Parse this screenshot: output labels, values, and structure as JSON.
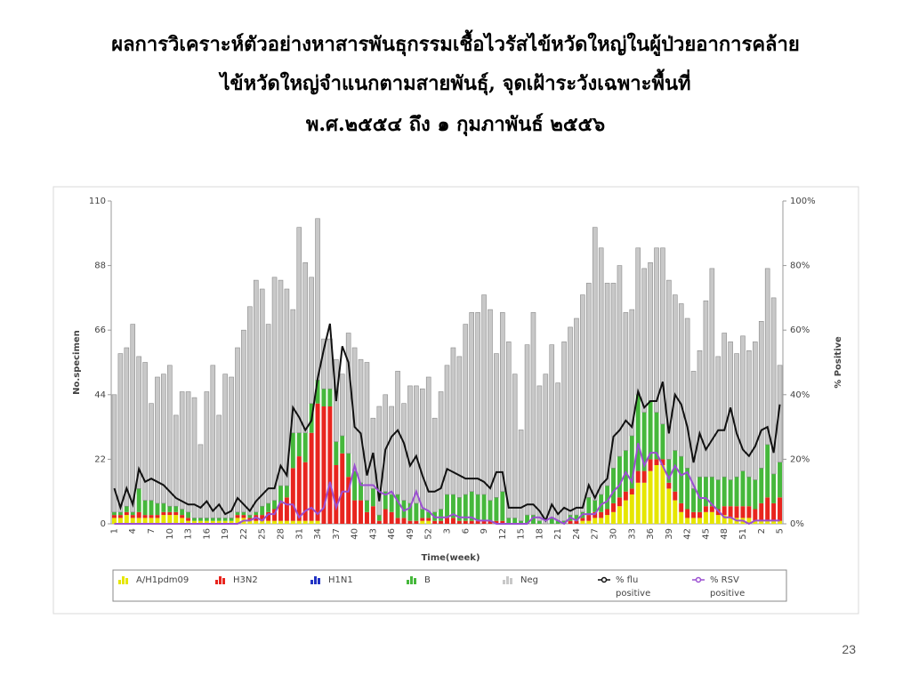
{
  "chart_data": {
    "type": "bar",
    "title": [
      "ผลการวิเคราะห์ตัวอย่างหาสารพันธุกรรมเชื้อไวรัสไข้หวัดใหญ่ในผู้ป่วยอาการคล้าย",
      "ไข้หวัดใหญ่จำแนกตามสายพันธุ์, จุดเฝ้าระวังเฉพาะพื้นที่",
      "พ.ศ.๒๕๕๔ ถึง ๑ กุมภาพันธ์ ๒๕๕๖"
    ],
    "y_label": "No.specimen",
    "y2_label": "% Positive",
    "x_label": "Time(week)",
    "page_number": "23",
    "ylim": [
      0,
      110
    ],
    "yticks": [
      0,
      22,
      44,
      66,
      88,
      110
    ],
    "y2lim": [
      0,
      100
    ],
    "y2ticks": [
      {
        "value": 0,
        "label": "0%"
      },
      {
        "value": 20,
        "label": "20%"
      },
      {
        "value": 40,
        "label": "40%"
      },
      {
        "value": 60,
        "label": "60%"
      },
      {
        "value": 80,
        "label": "80%"
      },
      {
        "value": 100,
        "label": "100%"
      }
    ],
    "stacked": true,
    "categories": [
      "1",
      null,
      null,
      "4",
      null,
      null,
      "7",
      null,
      null,
      "10",
      null,
      null,
      "13",
      null,
      null,
      "16",
      null,
      null,
      "19",
      null,
      null,
      "22",
      null,
      null,
      "25",
      null,
      null,
      "28",
      null,
      null,
      "31",
      null,
      null,
      "34",
      null,
      null,
      "37",
      null,
      null,
      "40",
      null,
      null,
      "43",
      null,
      null,
      "46",
      null,
      null,
      "49",
      null,
      null,
      "52",
      null,
      null,
      "3",
      null,
      null,
      "6",
      null,
      null,
      "9",
      null,
      null,
      "12",
      null,
      null,
      "15",
      null,
      null,
      "18",
      null,
      null,
      "21",
      null,
      null,
      "24",
      null,
      null,
      "27",
      null,
      null,
      "30",
      null,
      null,
      "33",
      null,
      null,
      "36",
      null,
      null,
      "39",
      null,
      null,
      "42",
      null,
      null,
      "45",
      null,
      null,
      "48",
      null,
      null,
      "51",
      null,
      null,
      "2",
      null,
      null,
      "5"
    ],
    "series": [
      {
        "name": "A/H1pdm09",
        "color": "#e6e600",
        "values": [
          2,
          2,
          3,
          2,
          2,
          2,
          2,
          2,
          3,
          3,
          3,
          2,
          1,
          1,
          1,
          1,
          1,
          1,
          1,
          1,
          2,
          2,
          1,
          1,
          1,
          1,
          1,
          1,
          1,
          1,
          1,
          1,
          1,
          1,
          0,
          0,
          0,
          0,
          0,
          0,
          0,
          0,
          0,
          0,
          0,
          0,
          0,
          0,
          0,
          0,
          1,
          1,
          0,
          0,
          0,
          0,
          0,
          0,
          0,
          0,
          0,
          0,
          0,
          0,
          0,
          0,
          0,
          0,
          0,
          0,
          0,
          0,
          0,
          0,
          0,
          0,
          1,
          1,
          2,
          2,
          3,
          4,
          6,
          8,
          10,
          14,
          14,
          18,
          20,
          20,
          12,
          8,
          4,
          2,
          2,
          2,
          4,
          4,
          3,
          3,
          2,
          2,
          2,
          2,
          1,
          1,
          1,
          1,
          1
        ]
      },
      {
        "name": "H3N2",
        "color": "#e8251e",
        "values": [
          1,
          1,
          1,
          1,
          2,
          1,
          1,
          1,
          1,
          1,
          1,
          1,
          1,
          0,
          0,
          0,
          0,
          0,
          0,
          0,
          1,
          1,
          1,
          2,
          2,
          3,
          4,
          6,
          8,
          18,
          22,
          20,
          30,
          40,
          40,
          40,
          20,
          24,
          16,
          8,
          8,
          4,
          6,
          1,
          5,
          4,
          2,
          2,
          1,
          1,
          1,
          1,
          1,
          1,
          2,
          2,
          1,
          1,
          1,
          1,
          1,
          1,
          1,
          1,
          0,
          0,
          0,
          0,
          0,
          0,
          0,
          0,
          0,
          0,
          1,
          1,
          1,
          2,
          2,
          2,
          2,
          3,
          3,
          3,
          2,
          4,
          4,
          4,
          2,
          2,
          2,
          3,
          3,
          3,
          2,
          2,
          2,
          2,
          2,
          3,
          4,
          4,
          4,
          4,
          4,
          6,
          8,
          6,
          8
        ]
      },
      {
        "name": "H1N1",
        "color": "#2233c4",
        "values": [
          0,
          0,
          0,
          0,
          0,
          0,
          0,
          0,
          0,
          0,
          0,
          0,
          0,
          0,
          0,
          0,
          0,
          0,
          0,
          0,
          0,
          0,
          0,
          0,
          0,
          0,
          0,
          0,
          0,
          0,
          0,
          0,
          0,
          0,
          0,
          0,
          0,
          0,
          0,
          0,
          0,
          0,
          0,
          0,
          0,
          0,
          0,
          0,
          0,
          0,
          0,
          0,
          0,
          0,
          0,
          0,
          0,
          0,
          0,
          0,
          0,
          0,
          0,
          0,
          0,
          0,
          0,
          0,
          0,
          0,
          0,
          0,
          0,
          0,
          0,
          0,
          0,
          0,
          0,
          0,
          0,
          0,
          0,
          0,
          0,
          0,
          0,
          0,
          0,
          0,
          0,
          0,
          0,
          0,
          0,
          0,
          0,
          0,
          0,
          0,
          0,
          0,
          0,
          0,
          0,
          0,
          0,
          0,
          0
        ]
      },
      {
        "name": "B",
        "color": "#46b83c",
        "values": [
          1,
          1,
          2,
          1,
          8,
          5,
          5,
          4,
          3,
          2,
          2,
          2,
          2,
          1,
          1,
          1,
          1,
          1,
          1,
          1,
          1,
          1,
          1,
          1,
          3,
          3,
          3,
          6,
          4,
          12,
          8,
          10,
          10,
          8,
          6,
          6,
          8,
          6,
          8,
          10,
          6,
          4,
          6,
          2,
          6,
          6,
          8,
          6,
          6,
          6,
          3,
          2,
          3,
          4,
          8,
          8,
          8,
          9,
          10,
          9,
          9,
          7,
          8,
          10,
          2,
          2,
          1,
          3,
          3,
          1,
          0,
          2,
          1,
          1,
          2,
          2,
          2,
          6,
          4,
          6,
          8,
          12,
          14,
          14,
          18,
          26,
          20,
          20,
          16,
          12,
          8,
          14,
          16,
          14,
          8,
          12,
          10,
          10,
          10,
          10,
          9,
          10,
          12,
          10,
          10,
          12,
          18,
          10,
          12
        ]
      },
      {
        "name": "Neg",
        "color": "#c8c8c8",
        "values": [
          40,
          54,
          54,
          64,
          45,
          47,
          33,
          43,
          44,
          48,
          31,
          40,
          41,
          41,
          25,
          43,
          52,
          35,
          49,
          48,
          56,
          62,
          71,
          79,
          74,
          61,
          76,
          70,
          67,
          42,
          70,
          58,
          43,
          55,
          17,
          17,
          28,
          21,
          41,
          42,
          42,
          47,
          24,
          37,
          33,
          30,
          42,
          33,
          40,
          40,
          41,
          46,
          32,
          40,
          44,
          50,
          48,
          58,
          61,
          62,
          68,
          65,
          49,
          61,
          60,
          49,
          31,
          58,
          69,
          46,
          51,
          59,
          47,
          61,
          64,
          67,
          74,
          73,
          93,
          84,
          69,
          63,
          65,
          47,
          43,
          50,
          49,
          47,
          56,
          60,
          61,
          53,
          52,
          51,
          40,
          43,
          60,
          71,
          42,
          49,
          47,
          42,
          46,
          43,
          47,
          50,
          60,
          60,
          33
        ]
      },
      {
        "name": "% flu positive",
        "color": "#111111",
        "axis": "y2",
        "values": [
          11,
          5,
          11,
          6,
          17,
          13,
          14,
          13,
          12,
          10,
          8,
          7,
          6,
          6,
          5,
          7,
          4,
          6,
          3,
          4,
          8,
          6,
          4,
          7,
          9,
          11,
          11,
          18,
          15,
          36,
          33,
          29,
          32,
          45,
          54,
          62,
          38,
          55,
          50,
          30,
          28,
          15,
          22,
          7,
          23,
          27,
          29,
          25,
          18,
          21,
          15,
          10,
          10,
          11,
          17,
          16,
          15,
          14,
          14,
          14,
          13,
          11,
          16,
          16,
          5,
          5,
          5,
          6,
          6,
          4,
          1,
          6,
          3,
          5,
          4,
          5,
          5,
          12,
          8,
          12,
          14,
          27,
          29,
          32,
          30,
          41,
          36,
          38,
          38,
          44,
          28,
          40,
          37,
          30,
          19,
          28,
          23,
          26,
          29,
          29,
          36,
          28,
          23,
          21,
          24,
          29,
          30,
          22,
          37
        ]
      },
      {
        "name": "% RSV positive",
        "color": "#9b4fd1",
        "axis": "y2",
        "values": [
          0,
          0,
          0,
          0,
          0,
          0,
          0,
          0,
          0,
          0,
          0,
          0,
          0,
          0,
          0,
          0,
          0,
          0,
          0,
          0,
          0,
          1,
          1,
          2,
          1,
          3,
          3,
          7,
          6,
          6,
          2,
          4,
          5,
          3,
          5,
          13,
          5,
          10,
          10,
          18,
          12,
          12,
          12,
          10,
          9,
          10,
          7,
          4,
          5,
          10,
          5,
          4,
          2,
          2,
          2,
          3,
          2,
          2,
          2,
          1,
          1,
          1,
          0,
          0,
          0,
          0,
          0,
          0,
          2,
          2,
          1,
          2,
          1,
          0,
          2,
          1,
          3,
          3,
          3,
          6,
          7,
          10,
          12,
          16,
          13,
          25,
          18,
          22,
          22,
          18,
          14,
          18,
          15,
          16,
          12,
          8,
          8,
          6,
          4,
          2,
          2,
          1,
          1,
          0,
          1,
          1,
          1,
          1,
          1
        ]
      }
    ]
  }
}
